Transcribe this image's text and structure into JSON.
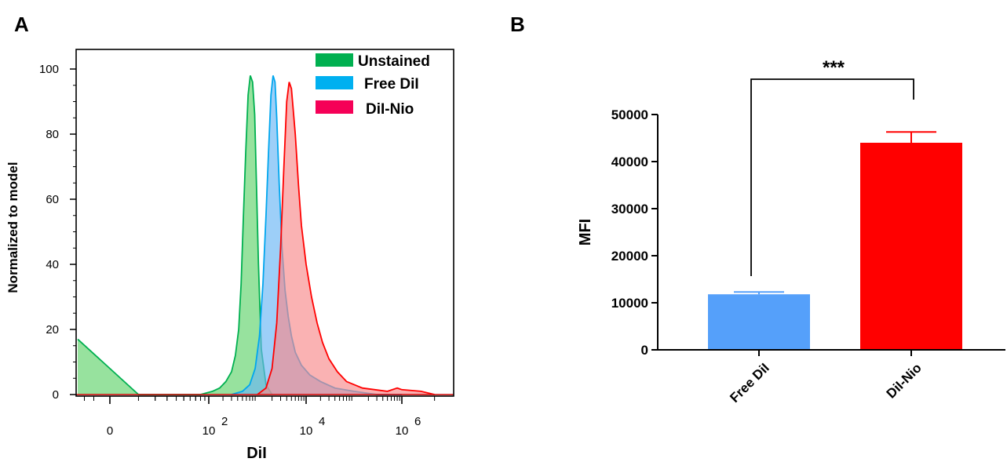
{
  "chart_data": [
    {
      "panel": "A",
      "type": "area",
      "xlabel": "DiI",
      "ylabel": "Normalized to model",
      "x_scale": "biexponential",
      "ylim": [
        0,
        100
      ],
      "y_ticks": [
        "0",
        "20",
        "40",
        "60",
        "80",
        "100"
      ],
      "x_ticks": [
        {
          "value": 0,
          "base": "0",
          "exp": ""
        },
        {
          "value": 100,
          "base": "10",
          "exp": "2"
        },
        {
          "value": 10000,
          "base": "10",
          "exp": "4"
        },
        {
          "value": 1000000,
          "base": "10",
          "exp": "6"
        }
      ],
      "legend_position": "top-right",
      "series": [
        {
          "name": "Unstained",
          "color": "#00B050",
          "fill": "#5FD36A",
          "x": [
            -30,
            10,
            50,
            80,
            120,
            170,
            230,
            300,
            360,
            420,
            470,
            520,
            580,
            650,
            720,
            800,
            880,
            950,
            1050,
            1200,
            1500,
            2000
          ],
          "y": [
            17,
            0,
            0,
            0,
            1,
            2,
            4,
            7,
            12,
            20,
            34,
            54,
            74,
            92,
            98,
            96,
            86,
            66,
            40,
            14,
            3,
            0
          ]
        },
        {
          "name": "Free DiI",
          "color": "#00A6EE",
          "fill": "#69B5F4",
          "x": [
            300,
            500,
            700,
            900,
            1100,
            1300,
            1500,
            1700,
            1900,
            2100,
            2300,
            2500,
            2800,
            3200,
            3700,
            4300,
            5000,
            6000,
            8000,
            12000,
            20000,
            40000,
            100000,
            300000,
            1000000
          ],
          "y": [
            0,
            1,
            3,
            8,
            18,
            34,
            55,
            75,
            92,
            98,
            96,
            85,
            65,
            45,
            32,
            24,
            18,
            13,
            9,
            6,
            4,
            2,
            1,
            0,
            0
          ]
        },
        {
          "name": "DiI-Nio",
          "color": "#FF0000",
          "fill": "#F8888A",
          "x": [
            1000,
            1500,
            2000,
            2500,
            3000,
            3500,
            4000,
            4500,
            5000,
            6000,
            7000,
            8000,
            10000,
            13000,
            17000,
            22000,
            30000,
            45000,
            70000,
            150000,
            500000,
            800000,
            1000000,
            1500000,
            2000000
          ],
          "y": [
            0,
            2,
            8,
            22,
            45,
            70,
            90,
            96,
            94,
            80,
            64,
            52,
            40,
            30,
            22,
            16,
            11,
            7,
            4,
            2,
            1,
            2,
            1.5,
            1,
            0
          ]
        }
      ]
    },
    {
      "panel": "B",
      "type": "bar",
      "ylabel": "MFI",
      "ylim": [
        0,
        50000
      ],
      "y_ticks": [
        "0",
        "10000",
        "20000",
        "30000",
        "40000",
        "50000"
      ],
      "categories": [
        "Free DiI",
        "DiI-Nio"
      ],
      "values": [
        11800,
        44000
      ],
      "errors": [
        500,
        2300
      ],
      "colors": [
        "#55A0FA",
        "#FF0000"
      ],
      "significance": "***"
    }
  ]
}
